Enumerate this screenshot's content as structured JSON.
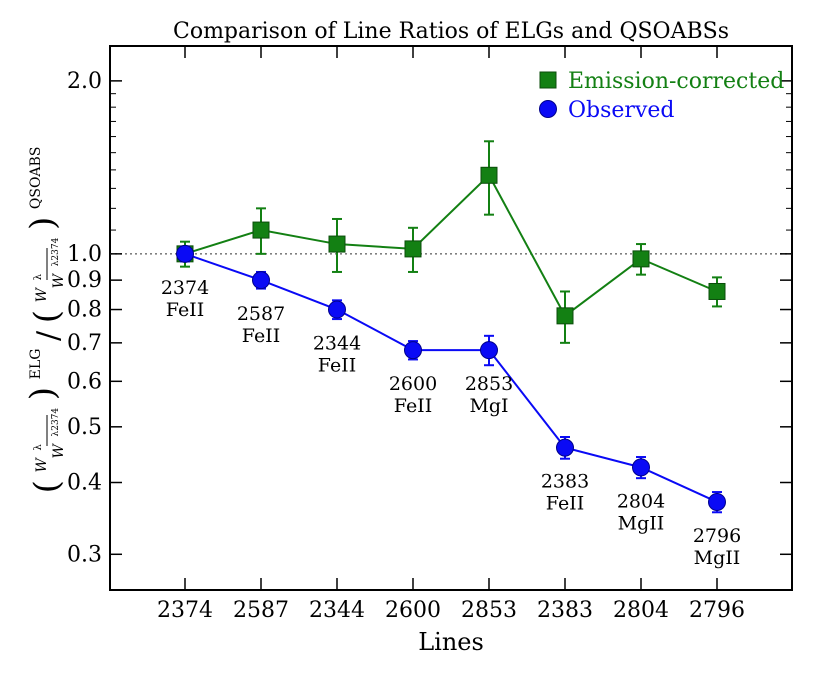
{
  "chart_data": {
    "type": "line",
    "title": "Comparison of Line Ratios of ELGs and QSOABSs",
    "xlabel": "Lines",
    "ylabel": {
      "numerator_var": "W",
      "numerator_sup": "λ",
      "denominator_sub": "λ2374",
      "elg_label": "ELG",
      "qso_label": "QSOABS"
    },
    "y_scale": "log",
    "ylim": [
      0.26,
      2.3
    ],
    "categories": [
      "2374",
      "2587",
      "2344",
      "2600",
      "2853",
      "2383",
      "2804",
      "2796"
    ],
    "species": [
      "FeII",
      "FeII",
      "FeII",
      "FeII",
      "MgI",
      "FeII",
      "MgII",
      "MgII"
    ],
    "y_ticks": [
      {
        "value": 0.3,
        "label": "0.3"
      },
      {
        "value": 0.4,
        "label": "0.4"
      },
      {
        "value": 0.5,
        "label": "0.5"
      },
      {
        "value": 0.6,
        "label": "0.6"
      },
      {
        "value": 0.7,
        "label": "0.7"
      },
      {
        "value": 0.8,
        "label": "0.8"
      },
      {
        "value": 0.9,
        "label": "0.9"
      },
      {
        "value": 1.0,
        "label": "1.0"
      },
      {
        "value": 2.0,
        "label": "2.0"
      }
    ],
    "reference_line": 1.0,
    "legend_position": "top-right",
    "series": [
      {
        "name": "Emission-corrected",
        "color": "#138013",
        "marker": "square",
        "values": [
          1.0,
          1.1,
          1.04,
          1.02,
          1.37,
          0.78,
          0.98,
          0.86
        ],
        "err_low": [
          0.05,
          0.1,
          0.11,
          0.09,
          0.2,
          0.08,
          0.06,
          0.05
        ],
        "err_high": [
          0.05,
          0.1,
          0.11,
          0.09,
          0.2,
          0.08,
          0.06,
          0.05
        ]
      },
      {
        "name": "Observed",
        "color": "#0a0af5",
        "marker": "circle",
        "values": [
          1.0,
          0.9,
          0.8,
          0.68,
          0.68,
          0.46,
          0.425,
          0.37
        ],
        "err_low": [
          0.03,
          0.03,
          0.03,
          0.025,
          0.04,
          0.02,
          0.018,
          0.015
        ],
        "err_high": [
          0.03,
          0.03,
          0.03,
          0.025,
          0.04,
          0.02,
          0.018,
          0.015
        ]
      }
    ]
  }
}
